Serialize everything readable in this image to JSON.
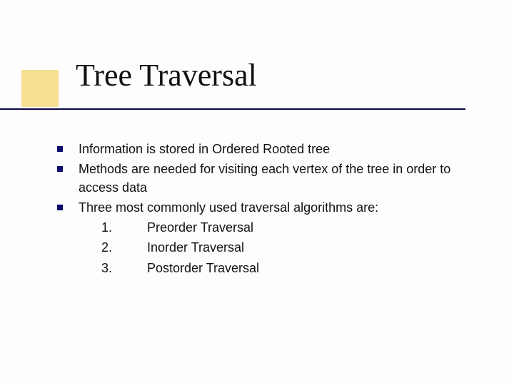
{
  "title": "Tree Traversal",
  "accent_color": "#f2c94c",
  "underline_color": "#070744",
  "bullet_color": "#0b0b6b",
  "background_color": "#fdfdfd",
  "text_color": "#111111",
  "title_fontsize": 44,
  "body_fontsize": 18,
  "bullets": [
    {
      "text": "Information is stored in Ordered Rooted tree"
    },
    {
      "text": "Methods are needed for visiting each vertex of the tree in order to access data"
    },
    {
      "text": "Three most commonly used traversal algorithms are:"
    }
  ],
  "numbered": [
    {
      "num": "1.",
      "label": "Preorder Traversal"
    },
    {
      "num": "2.",
      "label": "Inorder Traversal"
    },
    {
      "num": "3.",
      "label": "Postorder Traversal"
    }
  ]
}
